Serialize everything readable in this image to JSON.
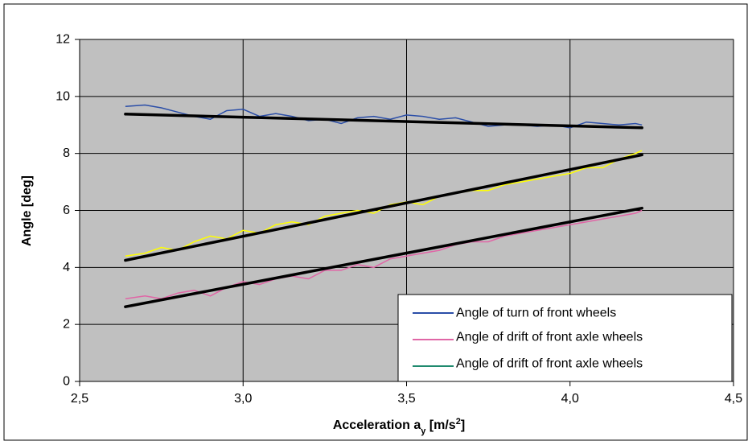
{
  "chart_data": {
    "type": "line",
    "xlabel": "Acceleration a",
    "xlabel_sub": "y",
    "xlabel_unit_pre": " [m/s",
    "xlabel_unit_sup": "2",
    "xlabel_unit_post": "]",
    "ylabel": "Angle [deg]",
    "xlim": [
      2.5,
      4.5
    ],
    "ylim": [
      0,
      12
    ],
    "x_ticks": [
      "2,5",
      "3,0",
      "3,5",
      "4,0",
      "4,5"
    ],
    "y_ticks": [
      "0",
      "2",
      "4",
      "6",
      "8",
      "10",
      "12"
    ],
    "grid": true,
    "legend_position": "bottom-right",
    "legend": [
      {
        "label": "Angle of  turn of front wheels",
        "color": "#2b4ea8"
      },
      {
        "label": "Angle of drift of front axle wheels",
        "color": "#e066a6"
      },
      {
        "label": "Angle of drift of front axle wheels",
        "color": "#1f8a6e"
      }
    ],
    "series": [
      {
        "name": "Angle of  turn of front wheels",
        "color": "#2b4ea8",
        "x": [
          2.64,
          2.7,
          2.75,
          2.8,
          2.85,
          2.9,
          2.95,
          3.0,
          3.05,
          3.1,
          3.15,
          3.2,
          3.25,
          3.3,
          3.35,
          3.4,
          3.45,
          3.5,
          3.55,
          3.6,
          3.65,
          3.7,
          3.75,
          3.8,
          3.85,
          3.9,
          3.95,
          4.0,
          4.05,
          4.1,
          4.15,
          4.2,
          4.22
        ],
        "y": [
          9.65,
          9.7,
          9.6,
          9.45,
          9.3,
          9.2,
          9.5,
          9.55,
          9.3,
          9.4,
          9.3,
          9.15,
          9.2,
          9.05,
          9.25,
          9.3,
          9.2,
          9.35,
          9.3,
          9.2,
          9.25,
          9.1,
          8.95,
          9.0,
          9.0,
          8.95,
          9.0,
          8.9,
          9.1,
          9.05,
          9.0,
          9.05,
          9.0
        ]
      },
      {
        "name": "Angle of drift of front axle wheels",
        "color": "#ffff00",
        "x": [
          2.64,
          2.7,
          2.75,
          2.8,
          2.85,
          2.9,
          2.95,
          3.0,
          3.05,
          3.1,
          3.15,
          3.2,
          3.25,
          3.3,
          3.35,
          3.4,
          3.45,
          3.5,
          3.55,
          3.6,
          3.65,
          3.7,
          3.75,
          3.8,
          3.85,
          3.9,
          3.95,
          4.0,
          4.05,
          4.1,
          4.15,
          4.2,
          4.22
        ],
        "y": [
          4.4,
          4.5,
          4.7,
          4.6,
          4.9,
          5.1,
          5.0,
          5.3,
          5.2,
          5.5,
          5.6,
          5.5,
          5.8,
          5.9,
          6.0,
          5.9,
          6.2,
          6.3,
          6.2,
          6.5,
          6.6,
          6.7,
          6.7,
          6.9,
          7.0,
          7.1,
          7.2,
          7.3,
          7.5,
          7.5,
          7.8,
          8.0,
          8.1
        ]
      },
      {
        "name": "Angle of drift of front axle wheels",
        "color": "#e066a6",
        "x": [
          2.64,
          2.7,
          2.75,
          2.8,
          2.85,
          2.9,
          2.95,
          3.0,
          3.05,
          3.1,
          3.15,
          3.2,
          3.25,
          3.3,
          3.35,
          3.4,
          3.45,
          3.5,
          3.55,
          3.6,
          3.65,
          3.7,
          3.75,
          3.8,
          3.85,
          3.9,
          3.95,
          4.0,
          4.05,
          4.1,
          4.15,
          4.2,
          4.22
        ],
        "y": [
          2.9,
          3.0,
          2.9,
          3.1,
          3.2,
          3.0,
          3.3,
          3.5,
          3.4,
          3.6,
          3.7,
          3.6,
          3.9,
          3.9,
          4.1,
          4.0,
          4.3,
          4.4,
          4.5,
          4.6,
          4.8,
          4.9,
          4.9,
          5.1,
          5.2,
          5.3,
          5.4,
          5.5,
          5.6,
          5.7,
          5.8,
          5.9,
          6.0
        ]
      }
    ],
    "trendlines": [
      {
        "x": [
          2.64,
          4.22
        ],
        "y": [
          9.38,
          8.9
        ]
      },
      {
        "x": [
          2.64,
          4.22
        ],
        "y": [
          4.25,
          7.95
        ]
      },
      {
        "x": [
          2.64,
          4.22
        ],
        "y": [
          2.62,
          6.08
        ]
      }
    ]
  }
}
